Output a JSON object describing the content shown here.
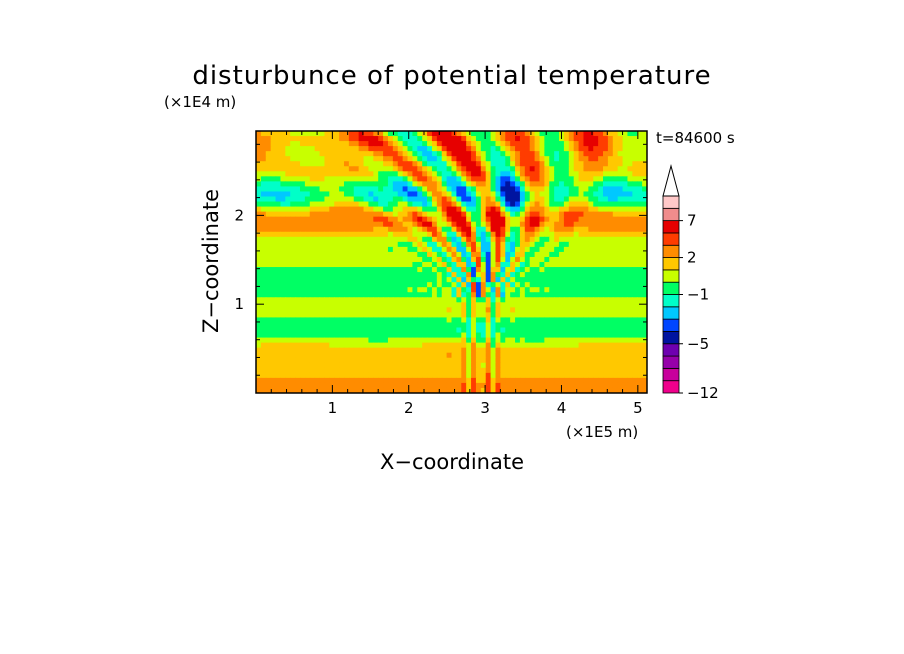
{
  "chart_data": {
    "type": "heatmap",
    "title": "disturbunce of potential temperature",
    "xlabel": "X−coordinate",
    "ylabel": "Z−coordinate",
    "x_unit": "(×1E5 m)",
    "y_unit": "(×1E4 m)",
    "time_label": "t=84600 s",
    "xlim": [
      0,
      5.12
    ],
    "ylim": [
      0,
      2.95
    ],
    "x_ticks": [
      {
        "value": 1,
        "label": "1"
      },
      {
        "value": 2,
        "label": "2"
      },
      {
        "value": 3,
        "label": "3"
      },
      {
        "value": 4,
        "label": "4"
      },
      {
        "value": 5,
        "label": "5"
      }
    ],
    "y_ticks": [
      {
        "value": 1,
        "label": "1"
      },
      {
        "value": 2,
        "label": "2"
      }
    ],
    "colorbar": {
      "colors": [
        "#f0008c",
        "#c8009c",
        "#9600aa",
        "#6e00b0",
        "#0014a0",
        "#0046ff",
        "#00c8ff",
        "#00ffc8",
        "#00ff64",
        "#c8ff00",
        "#ffc800",
        "#ff8c00",
        "#ff3c00",
        "#e60000",
        "#f08c8c",
        "#ffc8c8"
      ],
      "labels": [
        {
          "value": -12,
          "label": "−12"
        },
        {
          "value": -5,
          "label": "−5"
        },
        {
          "value": -1,
          "label": "−1"
        },
        {
          "value": 2,
          "label": "2"
        },
        {
          "value": 7,
          "label": "7"
        }
      ],
      "extend_top": true
    },
    "field_levels": [
      {
        "z_range": [
          0.0,
          0.3
        ],
        "dominant": "yellow-green with orange patches"
      },
      {
        "z_range": [
          0.3,
          0.9
        ],
        "dominant": "yellow/orange bands"
      },
      {
        "z_range": [
          0.9,
          1.2
        ],
        "dominant": "cyan band"
      },
      {
        "z_range": [
          1.2,
          2.0
        ],
        "dominant": "yellow/green bands with V-shaped blue/orange wave pattern centered near x=3"
      },
      {
        "z_range": [
          2.0,
          2.95
        ],
        "dominant": "mixed green/orange/cyan with blue patches"
      }
    ]
  }
}
